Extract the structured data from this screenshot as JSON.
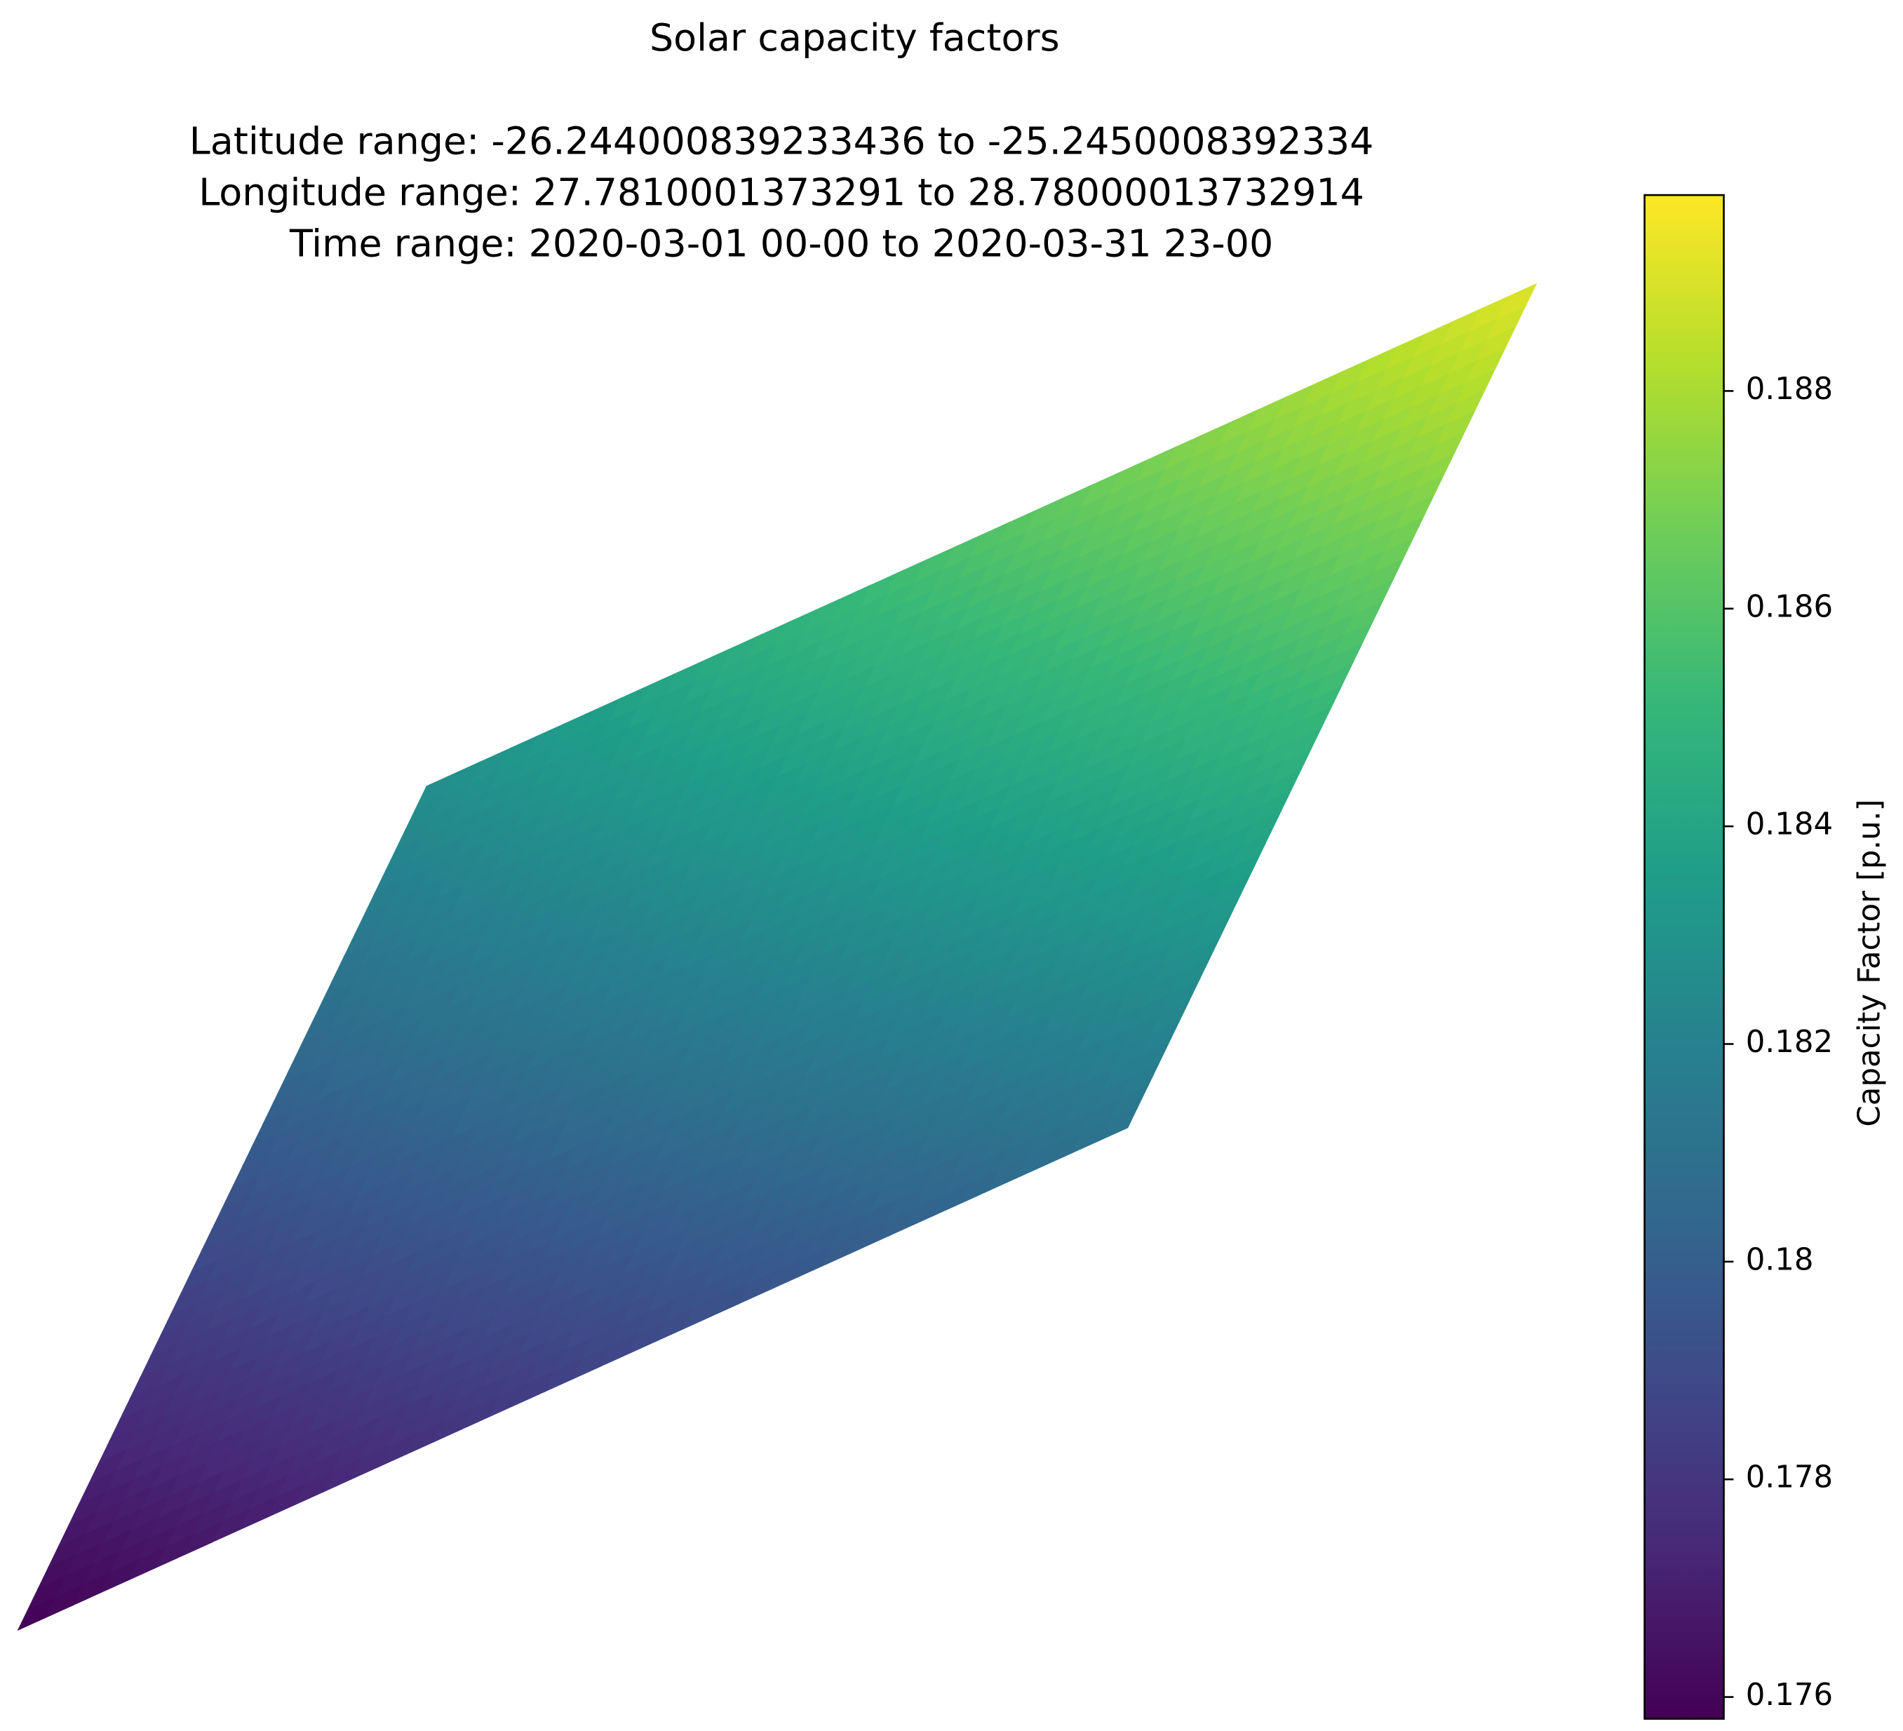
{
  "chart_data": {
    "type": "surface",
    "title": "Solar capacity factors",
    "subtitle": [
      "Latitude range: -26.244000839233436 to -25.2450008392334",
      "Longitude range: 27.7810001373291 to 28.78000013732914",
      "Time range: 2020-03-01 00-00 to 2020-03-31 23-00"
    ],
    "z": [
      [
        0.1758,
        0.1812
      ],
      [
        0.1827,
        0.1892
      ]
    ],
    "cmap": "viridis",
    "colorbar_label": "Capacity Factor [p.u.]",
    "clim": [
      0.1758,
      0.1898
    ],
    "cticks": [
      0.176,
      0.178,
      0.18,
      0.182,
      0.184,
      0.186,
      0.188
    ]
  }
}
